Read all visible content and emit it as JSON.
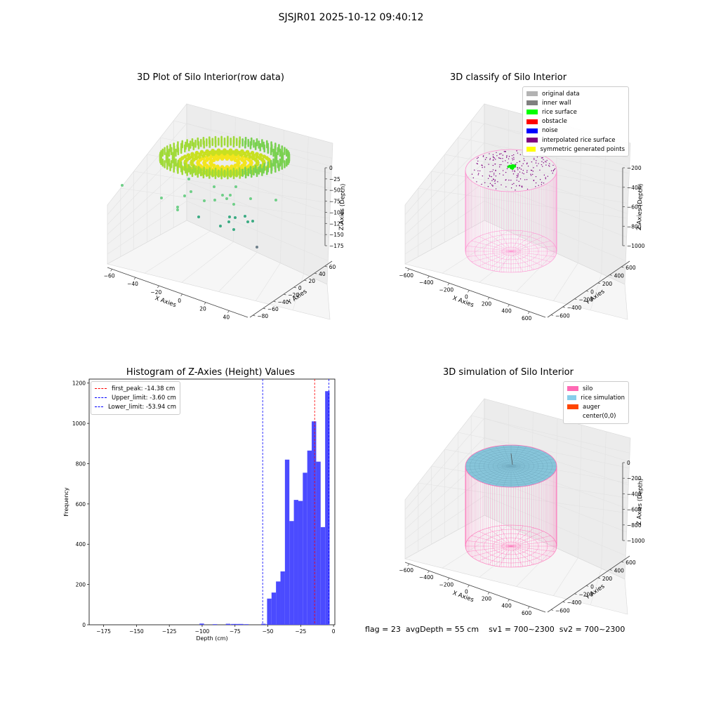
{
  "suptitle": "SJSJR01 2025-10-12 09:40:12",
  "panels": {
    "raw": {
      "title": "3D Plot of Silo Interior(row data)",
      "xlabel": "X Axies",
      "ylabel": "Y Axies",
      "zlabel": "Z Axies (Depth)",
      "xticks": [
        "−60",
        "−40",
        "−20",
        "0",
        "20",
        "40"
      ],
      "yticks": [
        "−80",
        "−60",
        "−40",
        "−20",
        "0",
        "20",
        "40",
        "60"
      ],
      "zticks": [
        "0",
        "−25",
        "−50",
        "−75",
        "−100",
        "−125",
        "−150",
        "−175"
      ]
    },
    "classify": {
      "title": "3D classify of Silo Interior",
      "xlabel": "X Axies",
      "ylabel": "Y Axies",
      "zlabel": "Z Axies (Depth)",
      "xticks": [
        "−600",
        "−400",
        "−200",
        "0",
        "200",
        "400",
        "600"
      ],
      "yticks": [
        "−600",
        "−400",
        "−200",
        "0",
        "200",
        "400",
        "600"
      ],
      "zticks": [
        "−200",
        "−400",
        "−600",
        "−800",
        "−1000"
      ],
      "legend": [
        {
          "label": "original data",
          "color": "#b3b3b3"
        },
        {
          "label": "inner wall",
          "color": "#808080"
        },
        {
          "label": "rice surface",
          "color": "#00ff00"
        },
        {
          "label": "obstacle",
          "color": "#ff0000"
        },
        {
          "label": "noise",
          "color": "#0000ff"
        },
        {
          "label": "interpolated rice surface",
          "color": "#800080"
        },
        {
          "label": "symmetric generated points",
          "color": "#ffff00"
        }
      ]
    },
    "simulation": {
      "title": "3D simulation of Silo Interior",
      "xlabel": "X Axies",
      "ylabel": "Y Axies",
      "zlabel": "Z Axies (Depth)",
      "xticks": [
        "−600",
        "−400",
        "−200",
        "0",
        "200",
        "400",
        "600"
      ],
      "yticks": [
        "−600",
        "−400",
        "−200",
        "0",
        "200",
        "400",
        "600"
      ],
      "zticks": [
        "0",
        "−200",
        "−400",
        "−600",
        "−800",
        "−1000"
      ],
      "legend": [
        {
          "label": "silo",
          "color": "#ff69b4"
        },
        {
          "label": "rice simulation",
          "color": "#87ceeb"
        },
        {
          "label": "auger",
          "color": "#ff4500"
        },
        {
          "label": "center(0,0)",
          "color": ""
        }
      ]
    }
  },
  "chart_data": {
    "type": "bar",
    "title": "Histogram of Z-Axies (Height) Values",
    "xlabel": "Depth (cm)",
    "ylabel": "Frequency",
    "xlim": [
      -186,
      1
    ],
    "ylim": [
      0,
      1220
    ],
    "xticks": [
      -175,
      -150,
      -125,
      -100,
      -75,
      -50,
      -25,
      0
    ],
    "yticks": [
      0,
      200,
      400,
      600,
      800,
      1000,
      1200
    ],
    "bar_color": "#4b4bff",
    "bin_width": 3.4,
    "bins": [
      {
        "start": -102.0,
        "count": 6
      },
      {
        "start": -92.0,
        "count": 3
      },
      {
        "start": -82.0,
        "count": 5
      },
      {
        "start": -78.0,
        "count": 4
      },
      {
        "start": -75.0,
        "count": 4
      },
      {
        "start": -72.0,
        "count": 4
      },
      {
        "start": -68.0,
        "count": 3
      },
      {
        "start": -55.0,
        "count": 5
      },
      {
        "start": -50.6,
        "count": 130
      },
      {
        "start": -47.2,
        "count": 160
      },
      {
        "start": -43.8,
        "count": 215
      },
      {
        "start": -40.4,
        "count": 265
      },
      {
        "start": -37.0,
        "count": 820
      },
      {
        "start": -33.6,
        "count": 515
      },
      {
        "start": -30.2,
        "count": 620
      },
      {
        "start": -26.8,
        "count": 615
      },
      {
        "start": -23.4,
        "count": 755
      },
      {
        "start": -20.0,
        "count": 865
      },
      {
        "start": -16.6,
        "count": 1010
      },
      {
        "start": -13.2,
        "count": 810
      },
      {
        "start": -9.8,
        "count": 485
      },
      {
        "start": -6.4,
        "count": 1160
      }
    ],
    "vlines": [
      {
        "name": "first_peak: -14.38 cm",
        "value": -14.38,
        "color": "#ff0000"
      },
      {
        "name": "Upper_limit: -3.60 cm",
        "value": -3.6,
        "color": "#0000ff"
      },
      {
        "name": "Lower_limit: -53.94 cm",
        "value": -53.94,
        "color": "#0000ff"
      }
    ]
  },
  "footer": {
    "flag": "flag = 23",
    "avg_depth": "avgDepth = 55 cm",
    "sv1": "sv1 = 700~2300",
    "sv2": "sv2 = 700~2300"
  }
}
